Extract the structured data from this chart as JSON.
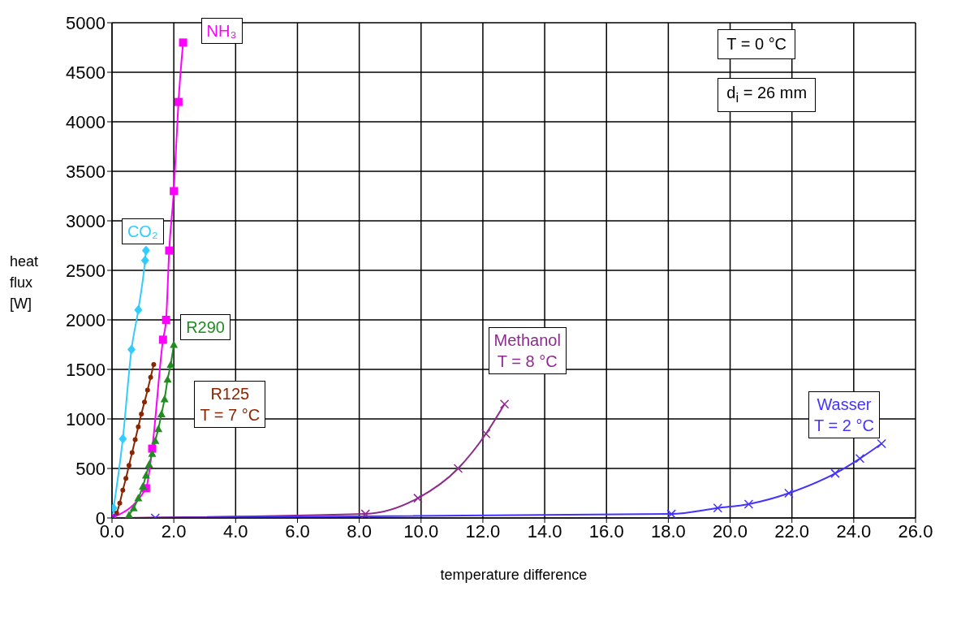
{
  "chart_data": {
    "type": "line",
    "xlabel": "temperature difference",
    "ylabel": "heat flux [W]",
    "xlim": [
      0,
      26
    ],
    "xticks": [
      {
        "value": 0,
        "label": "0.0"
      },
      {
        "value": 2,
        "label": "2.0"
      },
      {
        "value": 4,
        "label": "4.0"
      },
      {
        "value": 6,
        "label": "6.0"
      },
      {
        "value": 8,
        "label": "8.0"
      },
      {
        "value": 10,
        "label": "10.0"
      },
      {
        "value": 12,
        "label": "12.0"
      },
      {
        "value": 14,
        "label": "14.0"
      },
      {
        "value": 16,
        "label": "16.0"
      },
      {
        "value": 18,
        "label": "18.0"
      },
      {
        "value": 20,
        "label": "20.0"
      },
      {
        "value": 22,
        "label": "22.0"
      },
      {
        "value": 24,
        "label": "24.0"
      },
      {
        "value": 26,
        "label": "26.0"
      }
    ],
    "ylim": [
      0,
      5000
    ],
    "yticks": [
      0,
      500,
      1000,
      1500,
      2000,
      2500,
      3000,
      3500,
      4000,
      4500,
      5000
    ],
    "grid": true,
    "series": [
      {
        "name": "CO₂",
        "color": "#33ccff",
        "marker": "diamond",
        "x": [
          0,
          0.05,
          0.35,
          0.63,
          0.85,
          1.07,
          1.1
        ],
        "values": [
          0,
          100,
          800,
          1700,
          2100,
          2600,
          2700
        ]
      },
      {
        "name": "NH₃",
        "color": "#ff00ff",
        "marker": "square",
        "x": [
          0,
          1.1,
          1.3,
          1.65,
          1.75,
          1.85,
          2.0,
          2.15,
          2.3
        ],
        "values": [
          0,
          300,
          700,
          1800,
          2000,
          2700,
          3300,
          4200,
          4800
        ]
      },
      {
        "name": "R290",
        "color": "#228b22",
        "marker": "triangle",
        "x": [
          0.55,
          0.7,
          0.85,
          1.0,
          1.1,
          1.2,
          1.3,
          1.4,
          1.5,
          1.6,
          1.7,
          1.8,
          1.9,
          2.0
        ],
        "values": [
          30,
          100,
          200,
          320,
          430,
          540,
          650,
          780,
          900,
          1050,
          1200,
          1400,
          1550,
          1750
        ]
      },
      {
        "name": "R125\nT = 7 °C",
        "color": "#8b2500",
        "marker": "circle",
        "x": [
          0,
          0.15,
          0.25,
          0.35,
          0.45,
          0.55,
          0.65,
          0.75,
          0.85,
          0.95,
          1.05,
          1.15,
          1.25,
          1.35
        ],
        "values": [
          0,
          50,
          150,
          280,
          400,
          530,
          660,
          790,
          920,
          1050,
          1170,
          1290,
          1420,
          1550
        ]
      },
      {
        "name": "Methanol\nT = 8 °C",
        "color": "#8e2a8e",
        "marker": "cross",
        "x": [
          0,
          8.2,
          9.9,
          11.2,
          12.1,
          12.7
        ],
        "values": [
          0,
          40,
          200,
          500,
          850,
          1150
        ]
      },
      {
        "name": "Wasser\nT = 2 °C",
        "color": "#4433ff",
        "marker": "cross",
        "x": [
          0,
          1.4,
          18.1,
          19.6,
          20.6,
          21.9,
          23.4,
          24.2,
          24.9
        ],
        "values": [
          0,
          0,
          40,
          100,
          140,
          250,
          450,
          600,
          750
        ]
      }
    ],
    "annotations": [
      "T = 0 °C",
      "d$_{i}$ = 26 mm"
    ]
  }
}
